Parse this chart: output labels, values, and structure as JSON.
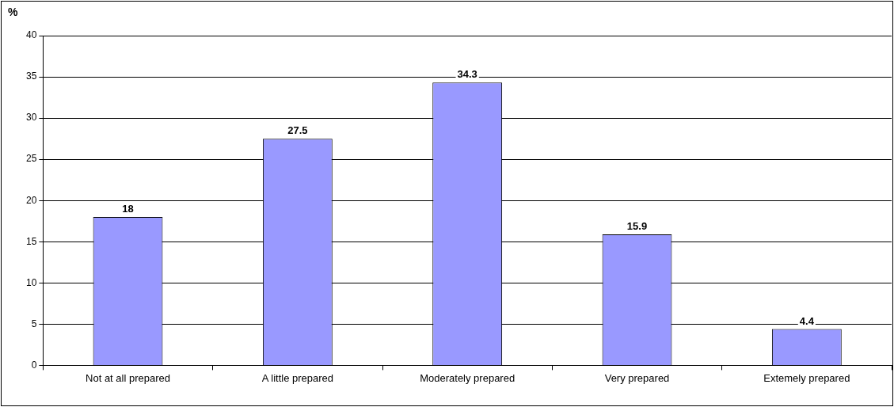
{
  "chart_data": {
    "type": "bar",
    "ylabel": "%",
    "categories": [
      "Not at all prepared",
      "A little prepared",
      "Moderately prepared",
      "Very prepared",
      "Extemely prepared"
    ],
    "values": [
      18,
      27.5,
      34.3,
      15.9,
      4.4
    ],
    "color": "#9999ff",
    "ylim": [
      0,
      40
    ],
    "yticks": [
      0,
      5,
      10,
      15,
      20,
      25,
      30,
      35,
      40
    ],
    "grid": "y",
    "data_labels": true
  }
}
